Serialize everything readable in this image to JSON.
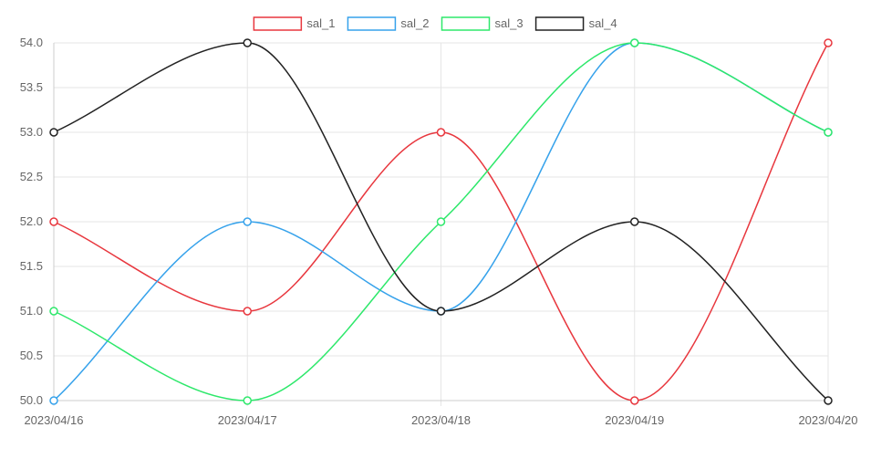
{
  "chart_data": {
    "type": "line",
    "title": "",
    "xlabel": "",
    "ylabel": "",
    "categories": [
      "2023/04/16",
      "2023/04/17",
      "2023/04/18",
      "2023/04/19",
      "2023/04/20"
    ],
    "ylim": [
      50.0,
      54.0
    ],
    "y_ticks": [
      "50.0",
      "50.5",
      "51.0",
      "51.5",
      "52.0",
      "52.5",
      "53.0",
      "53.5",
      "54.0"
    ],
    "grid": true,
    "legend_position": "top",
    "smooth": true,
    "series": [
      {
        "name": "sal_1",
        "color": "#e8373e",
        "values": [
          52,
          51,
          53,
          50,
          54
        ]
      },
      {
        "name": "sal_2",
        "color": "#36a2eb",
        "values": [
          50,
          52,
          51,
          54,
          53
        ]
      },
      {
        "name": "sal_3",
        "color": "#2ee86b",
        "values": [
          51,
          50,
          52,
          54,
          53
        ]
      },
      {
        "name": "sal_4",
        "color": "#222222",
        "values": [
          53,
          54,
          51,
          52,
          50
        ]
      }
    ]
  }
}
